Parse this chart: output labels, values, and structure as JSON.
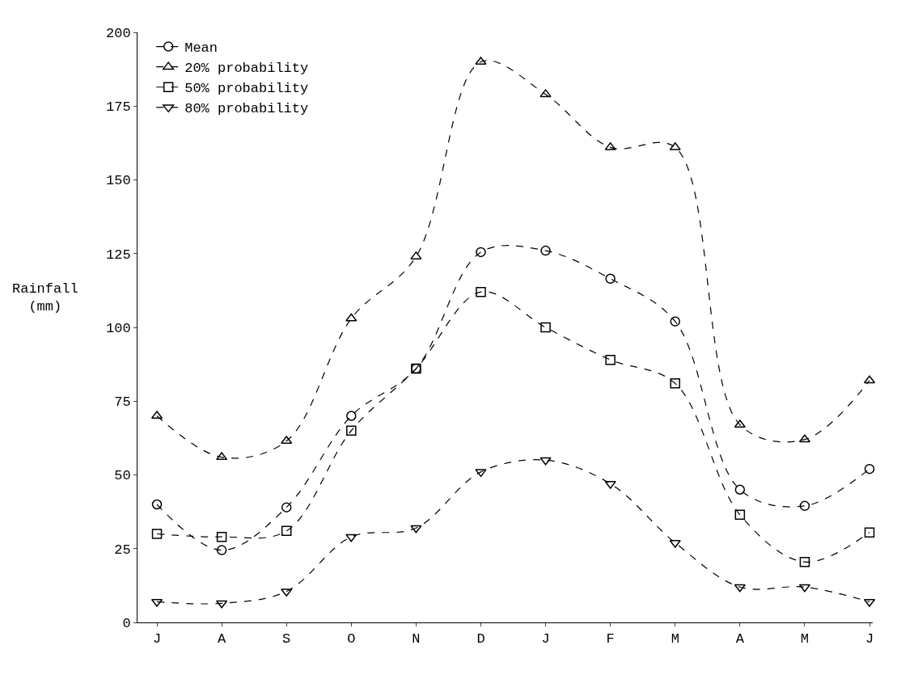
{
  "chart_data": {
    "type": "line",
    "ylabel": "Rainfall\n(mm)",
    "categories": [
      "J",
      "A",
      "S",
      "O",
      "N",
      "D",
      "J",
      "F",
      "M",
      "A",
      "M",
      "J"
    ],
    "ylim": [
      0,
      200
    ],
    "yticks": [
      0,
      25,
      50,
      75,
      100,
      125,
      150,
      175,
      200
    ],
    "legend": "top left",
    "line_style": "dashed",
    "series": [
      {
        "name": "Mean",
        "color": "#000000",
        "marker": "circle",
        "values": [
          40,
          24.5,
          39,
          70,
          86,
          125.5,
          126,
          116.5,
          102,
          45,
          39.5,
          52
        ]
      },
      {
        "name": "20% probability",
        "color": "#000000",
        "marker": "triangle",
        "values": [
          70,
          56,
          61.5,
          103,
          124,
          190,
          179,
          161,
          161,
          67,
          62,
          82
        ]
      },
      {
        "name": "50% probability",
        "color": "#000000",
        "marker": "square",
        "values": [
          30,
          29,
          31,
          65,
          86,
          112,
          100,
          89,
          81,
          36.5,
          20.5,
          30.5
        ]
      },
      {
        "name": "80% probability",
        "color": "#000000",
        "marker": "triangle-down",
        "values": [
          7,
          6.5,
          10.5,
          29,
          32,
          51,
          55,
          47,
          27,
          12,
          12,
          7
        ]
      }
    ]
  }
}
